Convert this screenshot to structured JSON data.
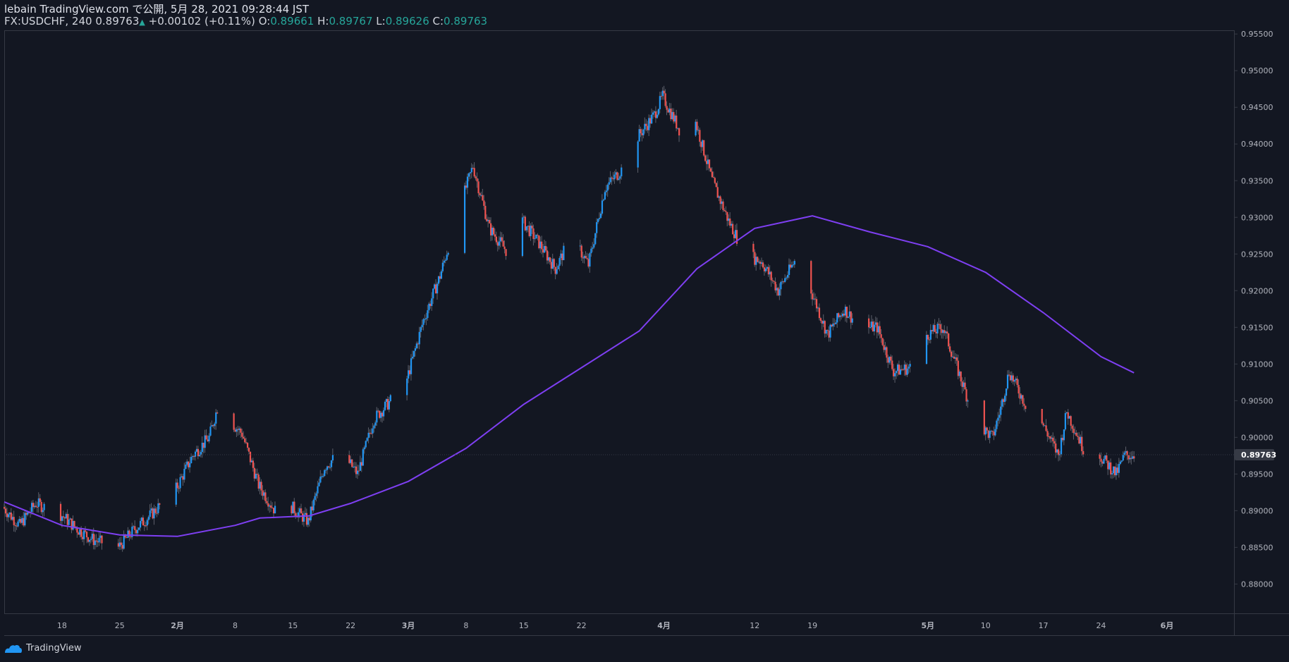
{
  "header": {
    "publish_line": "lebain TradingView.com で公開, 5月 28, 2021 09:28:44 JST",
    "symbol_interval": "FX:USDCHF, 240",
    "last": "0.89763",
    "arrow": "▲",
    "change": "+0.00102 (+0.11%)",
    "o_label": "O:",
    "o_value": "0.89661",
    "h_label": "H:",
    "h_value": "0.89767",
    "l_label": "L:",
    "l_value": "0.89626",
    "c_label": "C:",
    "c_value": "0.89763"
  },
  "footer": {
    "brand": "TradingView",
    "logo_icon": "tradingview-logo-icon"
  },
  "colors": {
    "background": "#131722",
    "up": "#2196f3",
    "down": "#ef5350",
    "ma": "#7e3ff2",
    "border": "#363a45",
    "last_label_bg": "#363a45",
    "header_up": "#26a69a"
  },
  "chart_data": {
    "type": "candlestick",
    "symbol": "FX:USDCHF",
    "interval": "240",
    "ylim": [
      0.876,
      0.9555
    ],
    "y_ticks": [
      {
        "value": 0.955,
        "label": "0.95500"
      },
      {
        "value": 0.95,
        "label": "0.95000"
      },
      {
        "value": 0.945,
        "label": "0.94500"
      },
      {
        "value": 0.94,
        "label": "0.94000"
      },
      {
        "value": 0.935,
        "label": "0.93500"
      },
      {
        "value": 0.93,
        "label": "0.93000"
      },
      {
        "value": 0.925,
        "label": "0.92500"
      },
      {
        "value": 0.92,
        "label": "0.92000"
      },
      {
        "value": 0.915,
        "label": "0.91500"
      },
      {
        "value": 0.91,
        "label": "0.91000"
      },
      {
        "value": 0.905,
        "label": "0.90500"
      },
      {
        "value": 0.9,
        "label": "0.90000"
      },
      {
        "value": 0.895,
        "label": "0.89500"
      },
      {
        "value": 0.89,
        "label": "0.89000"
      },
      {
        "value": 0.885,
        "label": "0.88500"
      },
      {
        "value": 0.88,
        "label": "0.88000"
      }
    ],
    "x_ticks": [
      {
        "label": "18",
        "date": "2021-01-18"
      },
      {
        "label": "25",
        "date": "2021-01-25"
      },
      {
        "label": "2月",
        "date": "2021-02-01",
        "bold": true
      },
      {
        "label": "8",
        "date": "2021-02-08"
      },
      {
        "label": "15",
        "date": "2021-02-15"
      },
      {
        "label": "22",
        "date": "2021-02-22"
      },
      {
        "label": "3月",
        "date": "2021-03-01",
        "bold": true
      },
      {
        "label": "8",
        "date": "2021-03-08"
      },
      {
        "label": "15",
        "date": "2021-03-15"
      },
      {
        "label": "22",
        "date": "2021-03-22"
      },
      {
        "label": "4月",
        "date": "2021-04-01",
        "bold": true
      },
      {
        "label": "12",
        "date": "2021-04-12"
      },
      {
        "label": "19",
        "date": "2021-04-19"
      },
      {
        "label": "5月",
        "date": "2021-05-03",
        "bold": true
      },
      {
        "label": "10",
        "date": "2021-05-10"
      },
      {
        "label": "17",
        "date": "2021-05-17"
      },
      {
        "label": "24",
        "date": "2021-05-24"
      },
      {
        "label": "6月",
        "date": "2021-06-01",
        "bold": true
      }
    ],
    "last_price": {
      "value": 0.89763,
      "label": "0.89763"
    },
    "close_path": [
      {
        "date": "2021-01-11",
        "close": 0.8905
      },
      {
        "date": "2021-01-13",
        "close": 0.888
      },
      {
        "date": "2021-01-15",
        "close": 0.891
      },
      {
        "date": "2021-01-18",
        "close": 0.8895
      },
      {
        "date": "2021-01-20",
        "close": 0.8875
      },
      {
        "date": "2021-01-22",
        "close": 0.886
      },
      {
        "date": "2021-01-25",
        "close": 0.885
      },
      {
        "date": "2021-01-27",
        "close": 0.8875
      },
      {
        "date": "2021-01-29",
        "close": 0.8895
      },
      {
        "date": "2021-02-01",
        "close": 0.893
      },
      {
        "date": "2021-02-03",
        "close": 0.8975
      },
      {
        "date": "2021-02-05",
        "close": 0.9
      },
      {
        "date": "2021-02-06",
        "close": 0.904
      },
      {
        "date": "2021-02-09",
        "close": 0.9005
      },
      {
        "date": "2021-02-11",
        "close": 0.8935
      },
      {
        "date": "2021-02-13",
        "close": 0.89
      },
      {
        "date": "2021-02-15",
        "close": 0.8905
      },
      {
        "date": "2021-02-17",
        "close": 0.8885
      },
      {
        "date": "2021-02-19",
        "close": 0.896
      },
      {
        "date": "2021-02-21",
        "close": 0.898
      },
      {
        "date": "2021-02-23",
        "close": 0.895
      },
      {
        "date": "2021-02-25",
        "close": 0.9025
      },
      {
        "date": "2021-02-27",
        "close": 0.905
      },
      {
        "date": "2021-03-01",
        "close": 0.908
      },
      {
        "date": "2021-03-03",
        "close": 0.916
      },
      {
        "date": "2021-03-05",
        "close": 0.922
      },
      {
        "date": "2021-03-07",
        "close": 0.93
      },
      {
        "date": "2021-03-09",
        "close": 0.937
      },
      {
        "date": "2021-03-11",
        "close": 0.9285
      },
      {
        "date": "2021-03-13",
        "close": 0.9255
      },
      {
        "date": "2021-03-15",
        "close": 0.9295
      },
      {
        "date": "2021-03-17",
        "close": 0.9265
      },
      {
        "date": "2021-03-19",
        "close": 0.923
      },
      {
        "date": "2021-03-21",
        "close": 0.9275
      },
      {
        "date": "2021-03-23",
        "close": 0.9235
      },
      {
        "date": "2021-03-25",
        "close": 0.934
      },
      {
        "date": "2021-03-27",
        "close": 0.9365
      },
      {
        "date": "2021-03-29",
        "close": 0.941
      },
      {
        "date": "2021-03-31",
        "close": 0.944
      },
      {
        "date": "2021-04-01",
        "close": 0.9465
      },
      {
        "date": "2021-04-03",
        "close": 0.942
      },
      {
        "date": "2021-04-05",
        "close": 0.943
      },
      {
        "date": "2021-04-07",
        "close": 0.935
      },
      {
        "date": "2021-04-09",
        "close": 0.9295
      },
      {
        "date": "2021-04-11",
        "close": 0.925
      },
      {
        "date": "2021-04-13",
        "close": 0.924
      },
      {
        "date": "2021-04-15",
        "close": 0.92
      },
      {
        "date": "2021-04-17",
        "close": 0.924
      },
      {
        "date": "2021-04-19",
        "close": 0.92
      },
      {
        "date": "2021-04-21",
        "close": 0.914
      },
      {
        "date": "2021-04-23",
        "close": 0.9175
      },
      {
        "date": "2021-04-25",
        "close": 0.915
      },
      {
        "date": "2021-04-27",
        "close": 0.915
      },
      {
        "date": "2021-04-29",
        "close": 0.909
      },
      {
        "date": "2021-05-01",
        "close": 0.9095
      },
      {
        "date": "2021-05-03",
        "close": 0.914
      },
      {
        "date": "2021-05-05",
        "close": 0.915
      },
      {
        "date": "2021-05-07",
        "close": 0.9085
      },
      {
        "date": "2021-05-09",
        "close": 0.902
      },
      {
        "date": "2021-05-11",
        "close": 0.9
      },
      {
        "date": "2021-05-12",
        "close": 0.904
      },
      {
        "date": "2021-05-13",
        "close": 0.909
      },
      {
        "date": "2021-05-15",
        "close": 0.9045
      },
      {
        "date": "2021-05-17",
        "close": 0.902
      },
      {
        "date": "2021-05-19",
        "close": 0.8975
      },
      {
        "date": "2021-05-20",
        "close": 0.9035
      },
      {
        "date": "2021-05-22",
        "close": 0.8985
      },
      {
        "date": "2021-05-24",
        "close": 0.8975
      },
      {
        "date": "2021-05-26",
        "close": 0.895
      },
      {
        "date": "2021-05-27",
        "close": 0.8975
      },
      {
        "date": "2021-05-28",
        "close": 0.89763
      }
    ],
    "moving_average": [
      {
        "date": "2021-01-11",
        "value": 0.8912
      },
      {
        "date": "2021-01-18",
        "value": 0.888
      },
      {
        "date": "2021-01-25",
        "value": 0.8867
      },
      {
        "date": "2021-02-01",
        "value": 0.8865
      },
      {
        "date": "2021-02-08",
        "value": 0.888
      },
      {
        "date": "2021-02-11",
        "value": 0.889
      },
      {
        "date": "2021-02-17",
        "value": 0.8893
      },
      {
        "date": "2021-02-22",
        "value": 0.891
      },
      {
        "date": "2021-03-01",
        "value": 0.894
      },
      {
        "date": "2021-03-08",
        "value": 0.8985
      },
      {
        "date": "2021-03-15",
        "value": 0.9045
      },
      {
        "date": "2021-03-22",
        "value": 0.9095
      },
      {
        "date": "2021-03-29",
        "value": 0.9145
      },
      {
        "date": "2021-04-05",
        "value": 0.923
      },
      {
        "date": "2021-04-12",
        "value": 0.9285
      },
      {
        "date": "2021-04-19",
        "value": 0.9302
      },
      {
        "date": "2021-04-26",
        "value": 0.928
      },
      {
        "date": "2021-05-03",
        "value": 0.926
      },
      {
        "date": "2021-05-10",
        "value": 0.9225
      },
      {
        "date": "2021-05-17",
        "value": 0.917
      },
      {
        "date": "2021-05-24",
        "value": 0.911
      },
      {
        "date": "2021-05-28",
        "value": 0.9088
      }
    ]
  }
}
